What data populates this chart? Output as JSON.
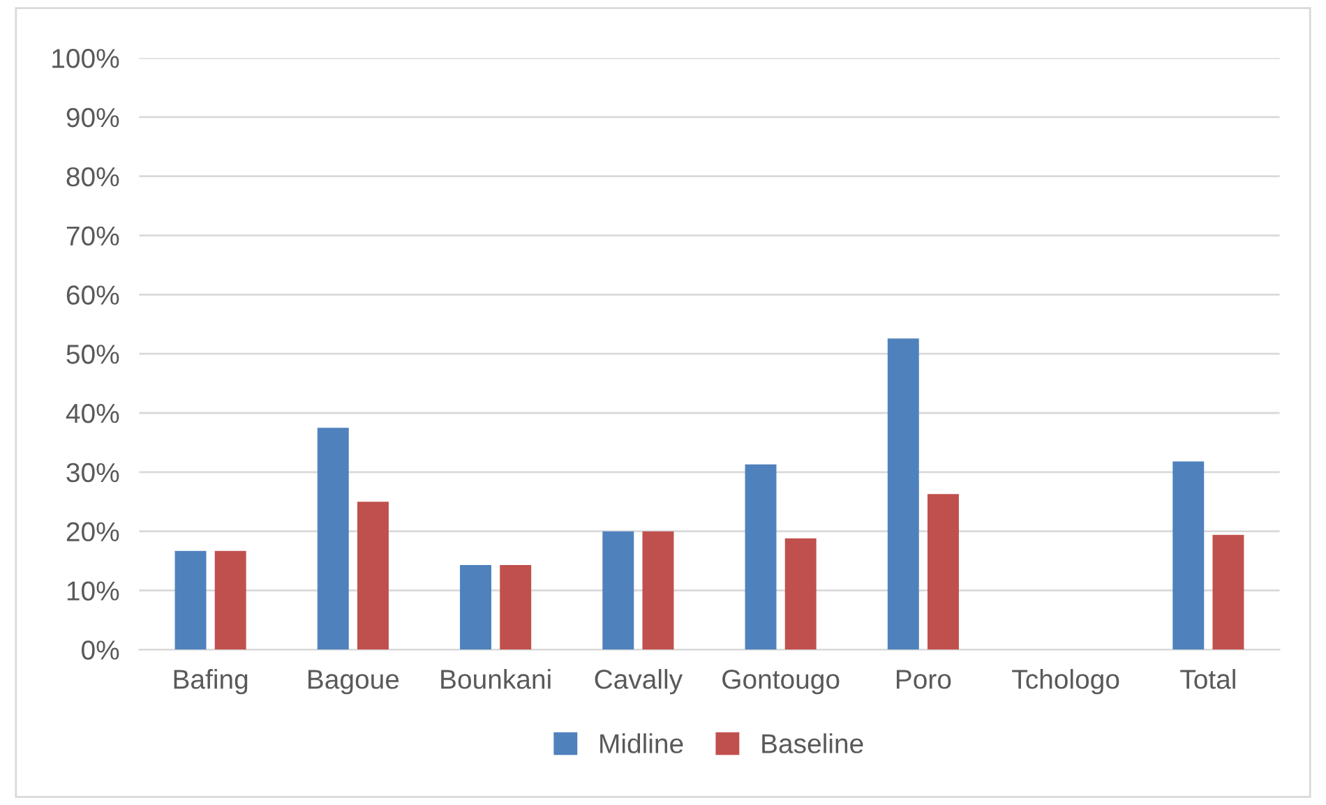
{
  "chart_data": {
    "type": "bar",
    "categories": [
      "Bafing",
      "Bagoue",
      "Bounkani",
      "Cavally",
      "Gontougo",
      "Poro",
      "Tchologo",
      "Total"
    ],
    "series": [
      {
        "name": "Midline",
        "color": "#4f81bd",
        "values": [
          16.7,
          37.5,
          14.3,
          20,
          31.3,
          52.6,
          0,
          31.8
        ]
      },
      {
        "name": "Baseline",
        "color": "#c0504d",
        "values": [
          16.7,
          25,
          14.3,
          20,
          18.8,
          26.3,
          0,
          19.4
        ]
      }
    ],
    "ylim": [
      0,
      100
    ],
    "yticks": [
      {
        "value": 0,
        "label": "0%"
      },
      {
        "value": 10,
        "label": "10%"
      },
      {
        "value": 20,
        "label": "20%"
      },
      {
        "value": 30,
        "label": "30%"
      },
      {
        "value": 40,
        "label": "40%"
      },
      {
        "value": 50,
        "label": "50%"
      },
      {
        "value": 60,
        "label": "60%"
      },
      {
        "value": 70,
        "label": "70%"
      },
      {
        "value": 80,
        "label": "80%"
      },
      {
        "value": 90,
        "label": "90%"
      },
      {
        "value": 100,
        "label": "100%"
      }
    ],
    "grid": "y",
    "legend": "bottom"
  }
}
